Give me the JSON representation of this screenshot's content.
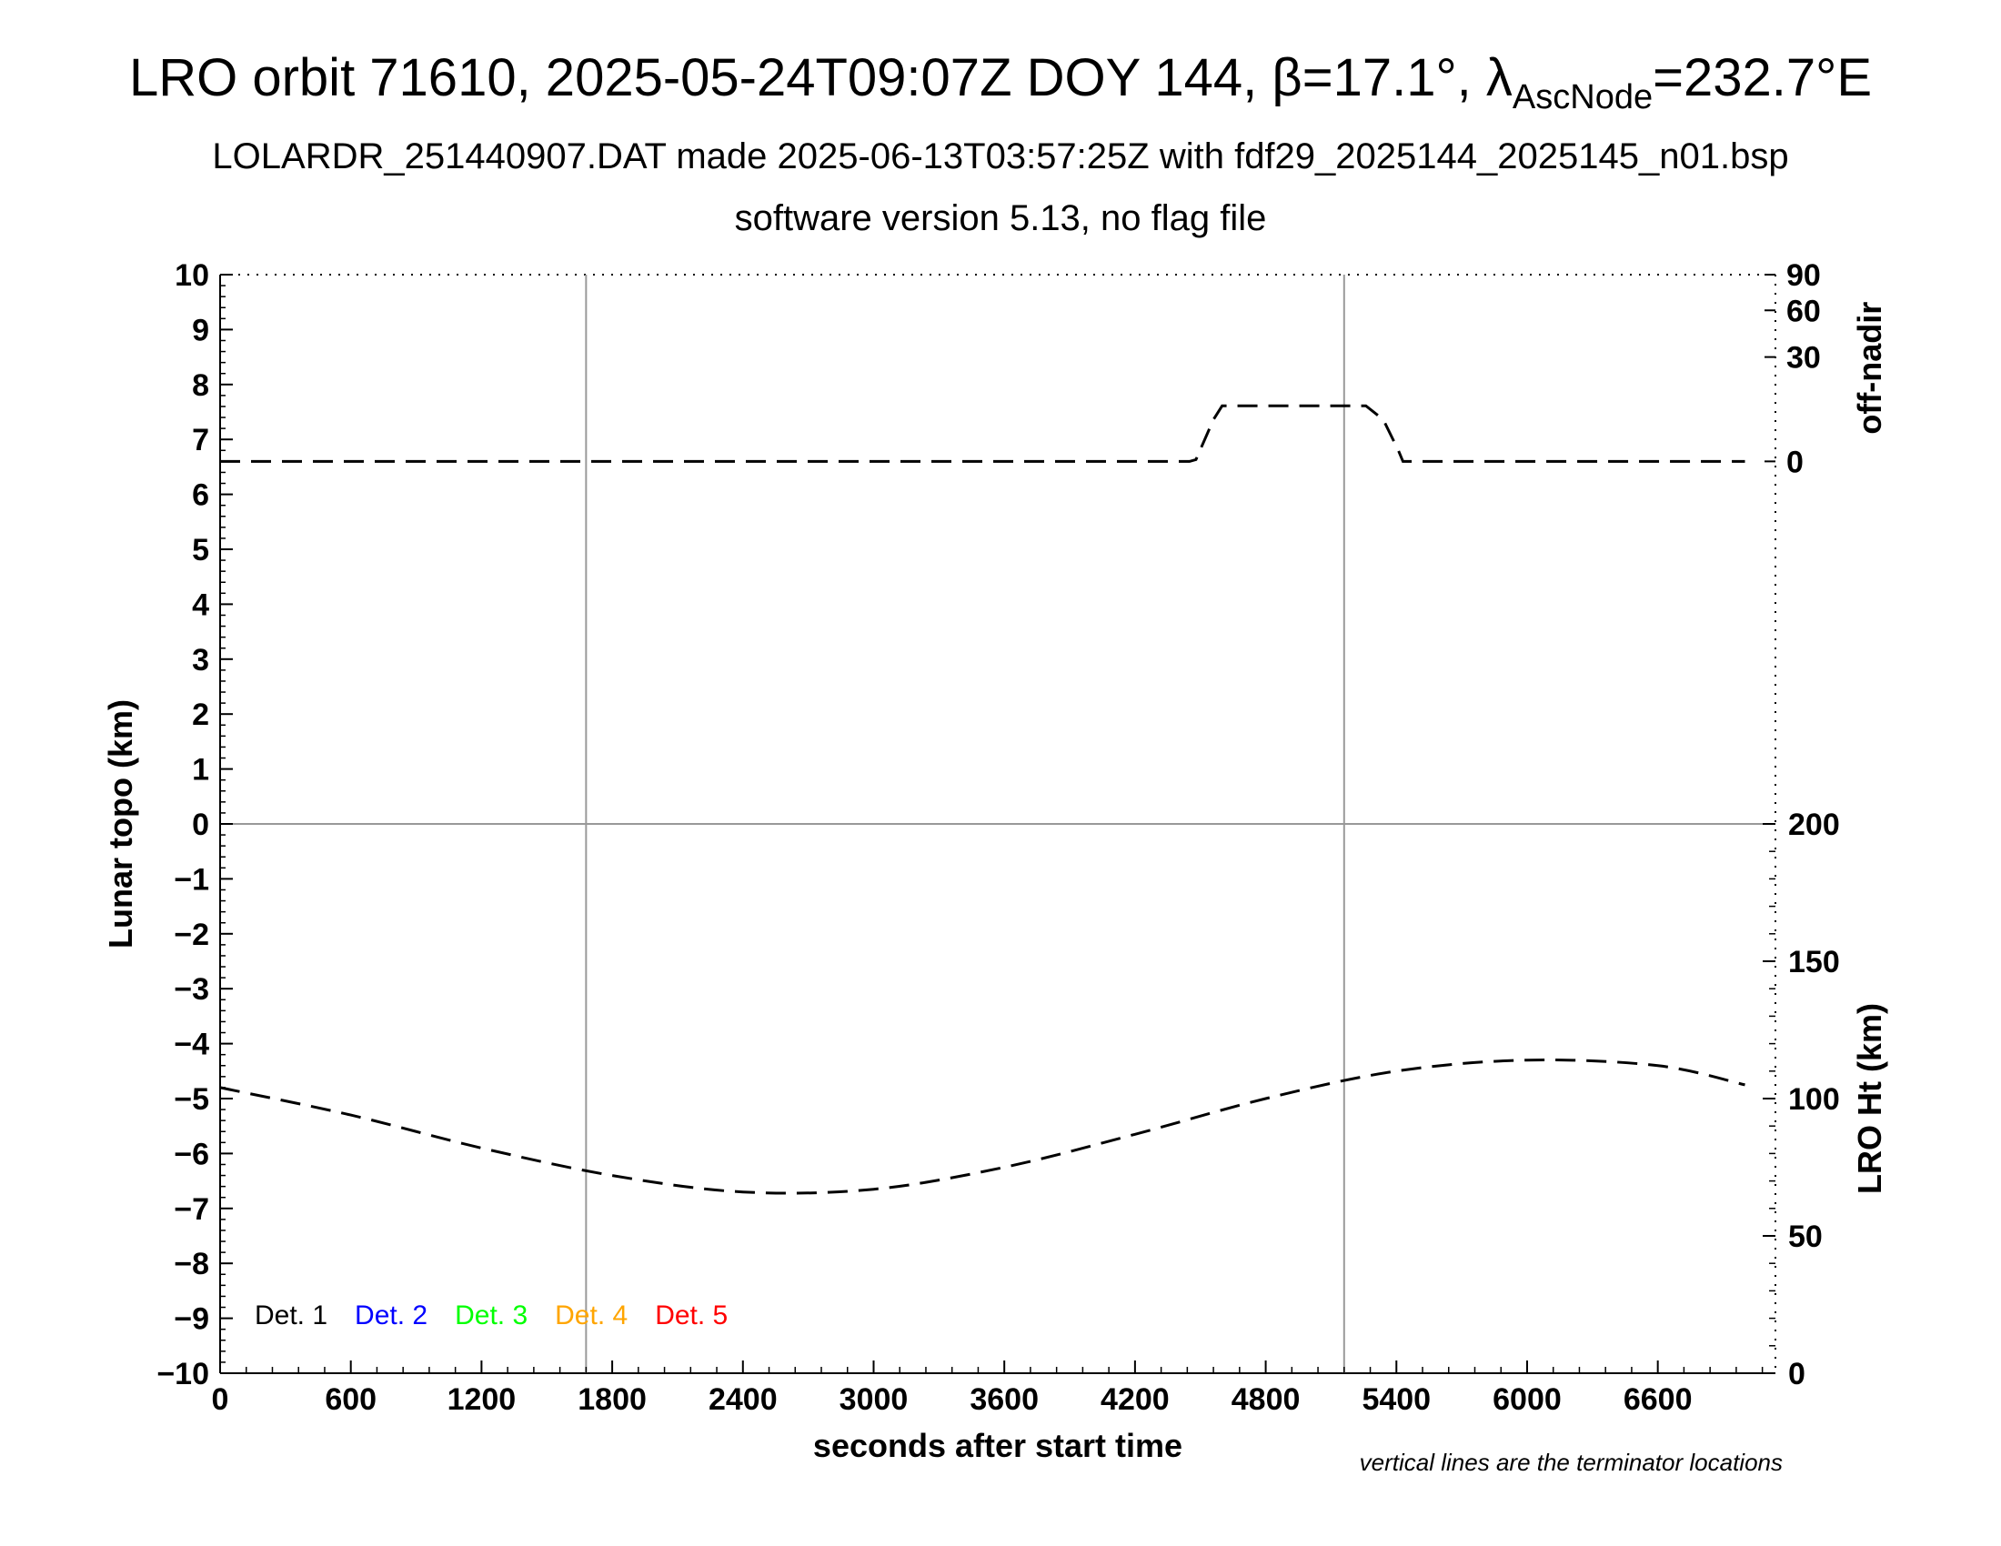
{
  "title": {
    "prefix": "LRO orbit 71610, 2025-05-24T09:07Z DOY 144, ",
    "beta": "β=17.1°, ",
    "lambda_symbol": "λ",
    "lambda_sub": "AscNode",
    "lambda_value": "=232.7°E"
  },
  "subtitle1": "LOLARDR_251440907.DAT made 2025-06-13T03:57:25Z with fdf29_2025144_2025145_n01.bsp",
  "subtitle2": "software version 5.13, no flag file",
  "note": "vertical lines are the terminator locations",
  "legend": [
    {
      "label": "Det. 1",
      "color": "#000000"
    },
    {
      "label": "Det. 2",
      "color": "#0000ff"
    },
    {
      "label": "Det. 3",
      "color": "#00ff00"
    },
    {
      "label": "Det. 4",
      "color": "#ffa500"
    },
    {
      "label": "Det. 5",
      "color": "#ff0000"
    }
  ],
  "chart_data": {
    "type": "line",
    "xlabel": "seconds after start time",
    "xlim": [
      0,
      7140
    ],
    "xticks": [
      0,
      600,
      1200,
      1800,
      2400,
      3000,
      3600,
      4200,
      4800,
      5400,
      6000,
      6600
    ],
    "left_axis": {
      "label": "Lunar topo (km)",
      "ylim": [
        -10,
        10
      ],
      "ticks": [
        10,
        9,
        8,
        7,
        6,
        5,
        4,
        3,
        2,
        1,
        0,
        -1,
        -2,
        -3,
        -4,
        -5,
        -6,
        -7,
        -8,
        -9,
        -10
      ],
      "tick_labels": [
        "10",
        "9",
        "8",
        "7",
        "6",
        "5",
        "4",
        "3",
        "2",
        "1",
        "0",
        "−1",
        "−2",
        "−3",
        "−4",
        "−5",
        "−6",
        "−7",
        "−8",
        "−9",
        "−10"
      ]
    },
    "right_top_axis": {
      "label": "off-nadir",
      "ticks": [
        90,
        60,
        30,
        0
      ],
      "tick_labels": [
        "90",
        "60",
        "30",
        "0"
      ]
    },
    "right_bottom_axis": {
      "label": "LRO Ht (km)",
      "ylim": [
        0,
        200
      ],
      "ticks": [
        200,
        150,
        100,
        50,
        0
      ],
      "tick_labels": [
        "200",
        "150",
        "100",
        "50",
        "0"
      ]
    },
    "terminator_lines_x": [
      1680,
      5160
    ],
    "zero_line_y": 0,
    "series": [
      {
        "style": "dashed",
        "axis": "off-nadir",
        "x": [
          0,
          4450,
          4480,
          4560,
          4600,
          5220,
          5260,
          5340,
          5410,
          5430,
          7000
        ],
        "y": [
          0,
          0,
          0.5,
          12,
          16,
          16,
          16,
          12,
          3,
          0,
          0
        ]
      },
      {
        "style": "dashed",
        "axis": "LRO Ht (km)",
        "x": [
          0,
          600,
          1200,
          1800,
          2400,
          3000,
          3600,
          4200,
          4800,
          5400,
          6000,
          6600,
          7000
        ],
        "y": [
          104,
          94,
          82,
          72,
          66,
          67,
          75,
          87,
          100,
          110,
          114,
          112,
          105
        ]
      }
    ]
  }
}
